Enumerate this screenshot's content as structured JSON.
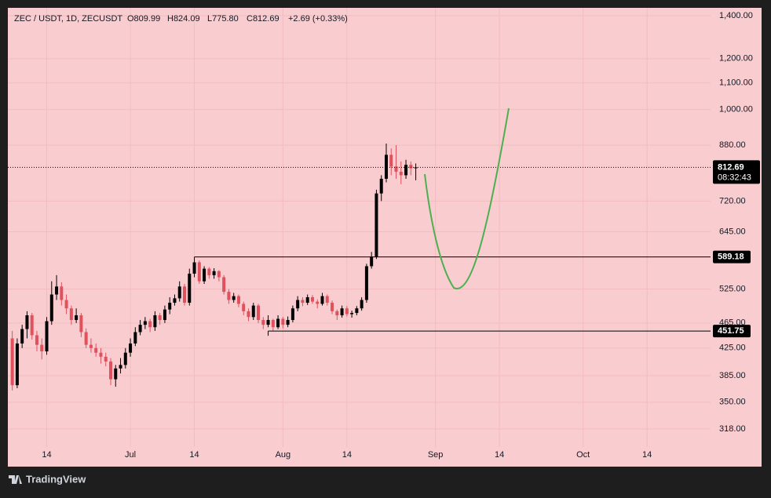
{
  "chart_data": {
    "type": "candlestick",
    "title": "ZEC / USDT, 1D, ZECUSDT",
    "ohlc_labels": [
      "O809.99",
      "H824.09",
      "L775.80",
      "C812.69"
    ],
    "change": "+2.69 (+0.33%)",
    "up_color": "#000000",
    "down_color": "#e0505d",
    "log_scale": true,
    "grid": true,
    "ylim": [
      298,
      1440
    ],
    "yticks": [
      {
        "value": 1400,
        "label": "1,400.00"
      },
      {
        "value": 1200,
        "label": "1,200.00"
      },
      {
        "value": 1100,
        "label": "1,100.00"
      },
      {
        "value": 1000,
        "label": "1,000.00"
      },
      {
        "value": 880,
        "label": "880.00"
      },
      {
        "value": 720,
        "label": "720.00"
      },
      {
        "value": 645,
        "label": "645.00"
      },
      {
        "value": 525,
        "label": "525.00"
      },
      {
        "value": 465,
        "label": "465.00"
      },
      {
        "value": 425,
        "label": "425.00"
      },
      {
        "value": 385,
        "label": "385.00"
      },
      {
        "value": 350,
        "label": "350.00"
      },
      {
        "value": 318,
        "label": "318.00"
      }
    ],
    "xlim": [
      -0.9,
      141.9
    ],
    "xticks": [
      {
        "value": 7,
        "label": "14"
      },
      {
        "value": 24,
        "label": "Jul"
      },
      {
        "value": 37,
        "label": "14"
      },
      {
        "value": 55,
        "label": "Aug"
      },
      {
        "value": 68,
        "label": "14"
      },
      {
        "value": 86,
        "label": "Sep"
      },
      {
        "value": 99,
        "label": "14"
      },
      {
        "value": 116,
        "label": "Oct"
      },
      {
        "value": 129,
        "label": "14"
      }
    ],
    "candles": [
      [
        440,
        452,
        365,
        372
      ],
      [
        372,
        440,
        368,
        432
      ],
      [
        432,
        462,
        425,
        455
      ],
      [
        455,
        485,
        440,
        478
      ],
      [
        478,
        482,
        438,
        445
      ],
      [
        445,
        452,
        420,
        430
      ],
      [
        430,
        440,
        408,
        420
      ],
      [
        420,
        475,
        415,
        468
      ],
      [
        468,
        540,
        462,
        515
      ],
      [
        515,
        552,
        505,
        530
      ],
      [
        530,
        538,
        495,
        505
      ],
      [
        505,
        515,
        480,
        490
      ],
      [
        490,
        495,
        462,
        470
      ],
      [
        470,
        490,
        465,
        478
      ],
      [
        478,
        482,
        442,
        450
      ],
      [
        450,
        456,
        425,
        430
      ],
      [
        430,
        440,
        418,
        425
      ],
      [
        425,
        432,
        412,
        418
      ],
      [
        418,
        425,
        402,
        412
      ],
      [
        412,
        418,
        398,
        405
      ],
      [
        405,
        410,
        372,
        380
      ],
      [
        380,
        400,
        370,
        395
      ],
      [
        395,
        410,
        388,
        400
      ],
      [
        400,
        425,
        395,
        418
      ],
      [
        418,
        440,
        412,
        432
      ],
      [
        432,
        458,
        428,
        450
      ],
      [
        450,
        470,
        445,
        462
      ],
      [
        462,
        475,
        455,
        468
      ],
      [
        468,
        472,
        450,
        458
      ],
      [
        458,
        485,
        452,
        478
      ],
      [
        478,
        482,
        462,
        470
      ],
      [
        470,
        495,
        465,
        488
      ],
      [
        488,
        510,
        480,
        500
      ],
      [
        500,
        515,
        495,
        508
      ],
      [
        508,
        540,
        502,
        530
      ],
      [
        530,
        535,
        495,
        500
      ],
      [
        500,
        565,
        495,
        555
      ],
      [
        555,
        585,
        548,
        578
      ],
      [
        578,
        582,
        535,
        540
      ],
      [
        540,
        570,
        535,
        565
      ],
      [
        565,
        568,
        545,
        552
      ],
      [
        552,
        566,
        545,
        560
      ],
      [
        560,
        562,
        540,
        548
      ],
      [
        548,
        552,
        515,
        520
      ],
      [
        520,
        525,
        498,
        505
      ],
      [
        505,
        518,
        500,
        512
      ],
      [
        512,
        515,
        492,
        498
      ],
      [
        498,
        502,
        478,
        485
      ],
      [
        485,
        490,
        468,
        475
      ],
      [
        475,
        500,
        470,
        495
      ],
      [
        495,
        498,
        465,
        470
      ],
      [
        470,
        475,
        455,
        462
      ],
      [
        462,
        478,
        458,
        470
      ],
      [
        470,
        472,
        452,
        458
      ],
      [
        458,
        478,
        455,
        472
      ],
      [
        472,
        475,
        456,
        462
      ],
      [
        462,
        476,
        458,
        470
      ],
      [
        470,
        495,
        466,
        490
      ],
      [
        490,
        512,
        485,
        505
      ],
      [
        505,
        510,
        494,
        500
      ],
      [
        500,
        515,
        496,
        510
      ],
      [
        510,
        514,
        498,
        502
      ],
      [
        502,
        506,
        490,
        498
      ],
      [
        498,
        518,
        495,
        512
      ],
      [
        512,
        515,
        495,
        500
      ],
      [
        500,
        504,
        480,
        485
      ],
      [
        485,
        488,
        470,
        478
      ],
      [
        478,
        495,
        474,
        490
      ],
      [
        490,
        494,
        476,
        480
      ],
      [
        480,
        486,
        474,
        482
      ],
      [
        482,
        494,
        478,
        490
      ],
      [
        490,
        510,
        486,
        505
      ],
      [
        505,
        575,
        500,
        570
      ],
      [
        570,
        600,
        565,
        590
      ],
      [
        590,
        750,
        585,
        740
      ],
      [
        740,
        790,
        720,
        780
      ],
      [
        780,
        885,
        770,
        850
      ],
      [
        850,
        870,
        790,
        815
      ],
      [
        815,
        880,
        780,
        800
      ],
      [
        800,
        830,
        765,
        790
      ],
      [
        790,
        835,
        780,
        820
      ],
      [
        820,
        830,
        790,
        810
      ],
      [
        809.99,
        824.09,
        775.8,
        812.69
      ]
    ],
    "hlines": [
      {
        "value": 589.18,
        "from": 37
      },
      {
        "value": 451.75,
        "from": 52
      }
    ],
    "last_price": {
      "value": 812.69,
      "countdown": "08:32:43"
    },
    "watermark": "TradingView"
  }
}
